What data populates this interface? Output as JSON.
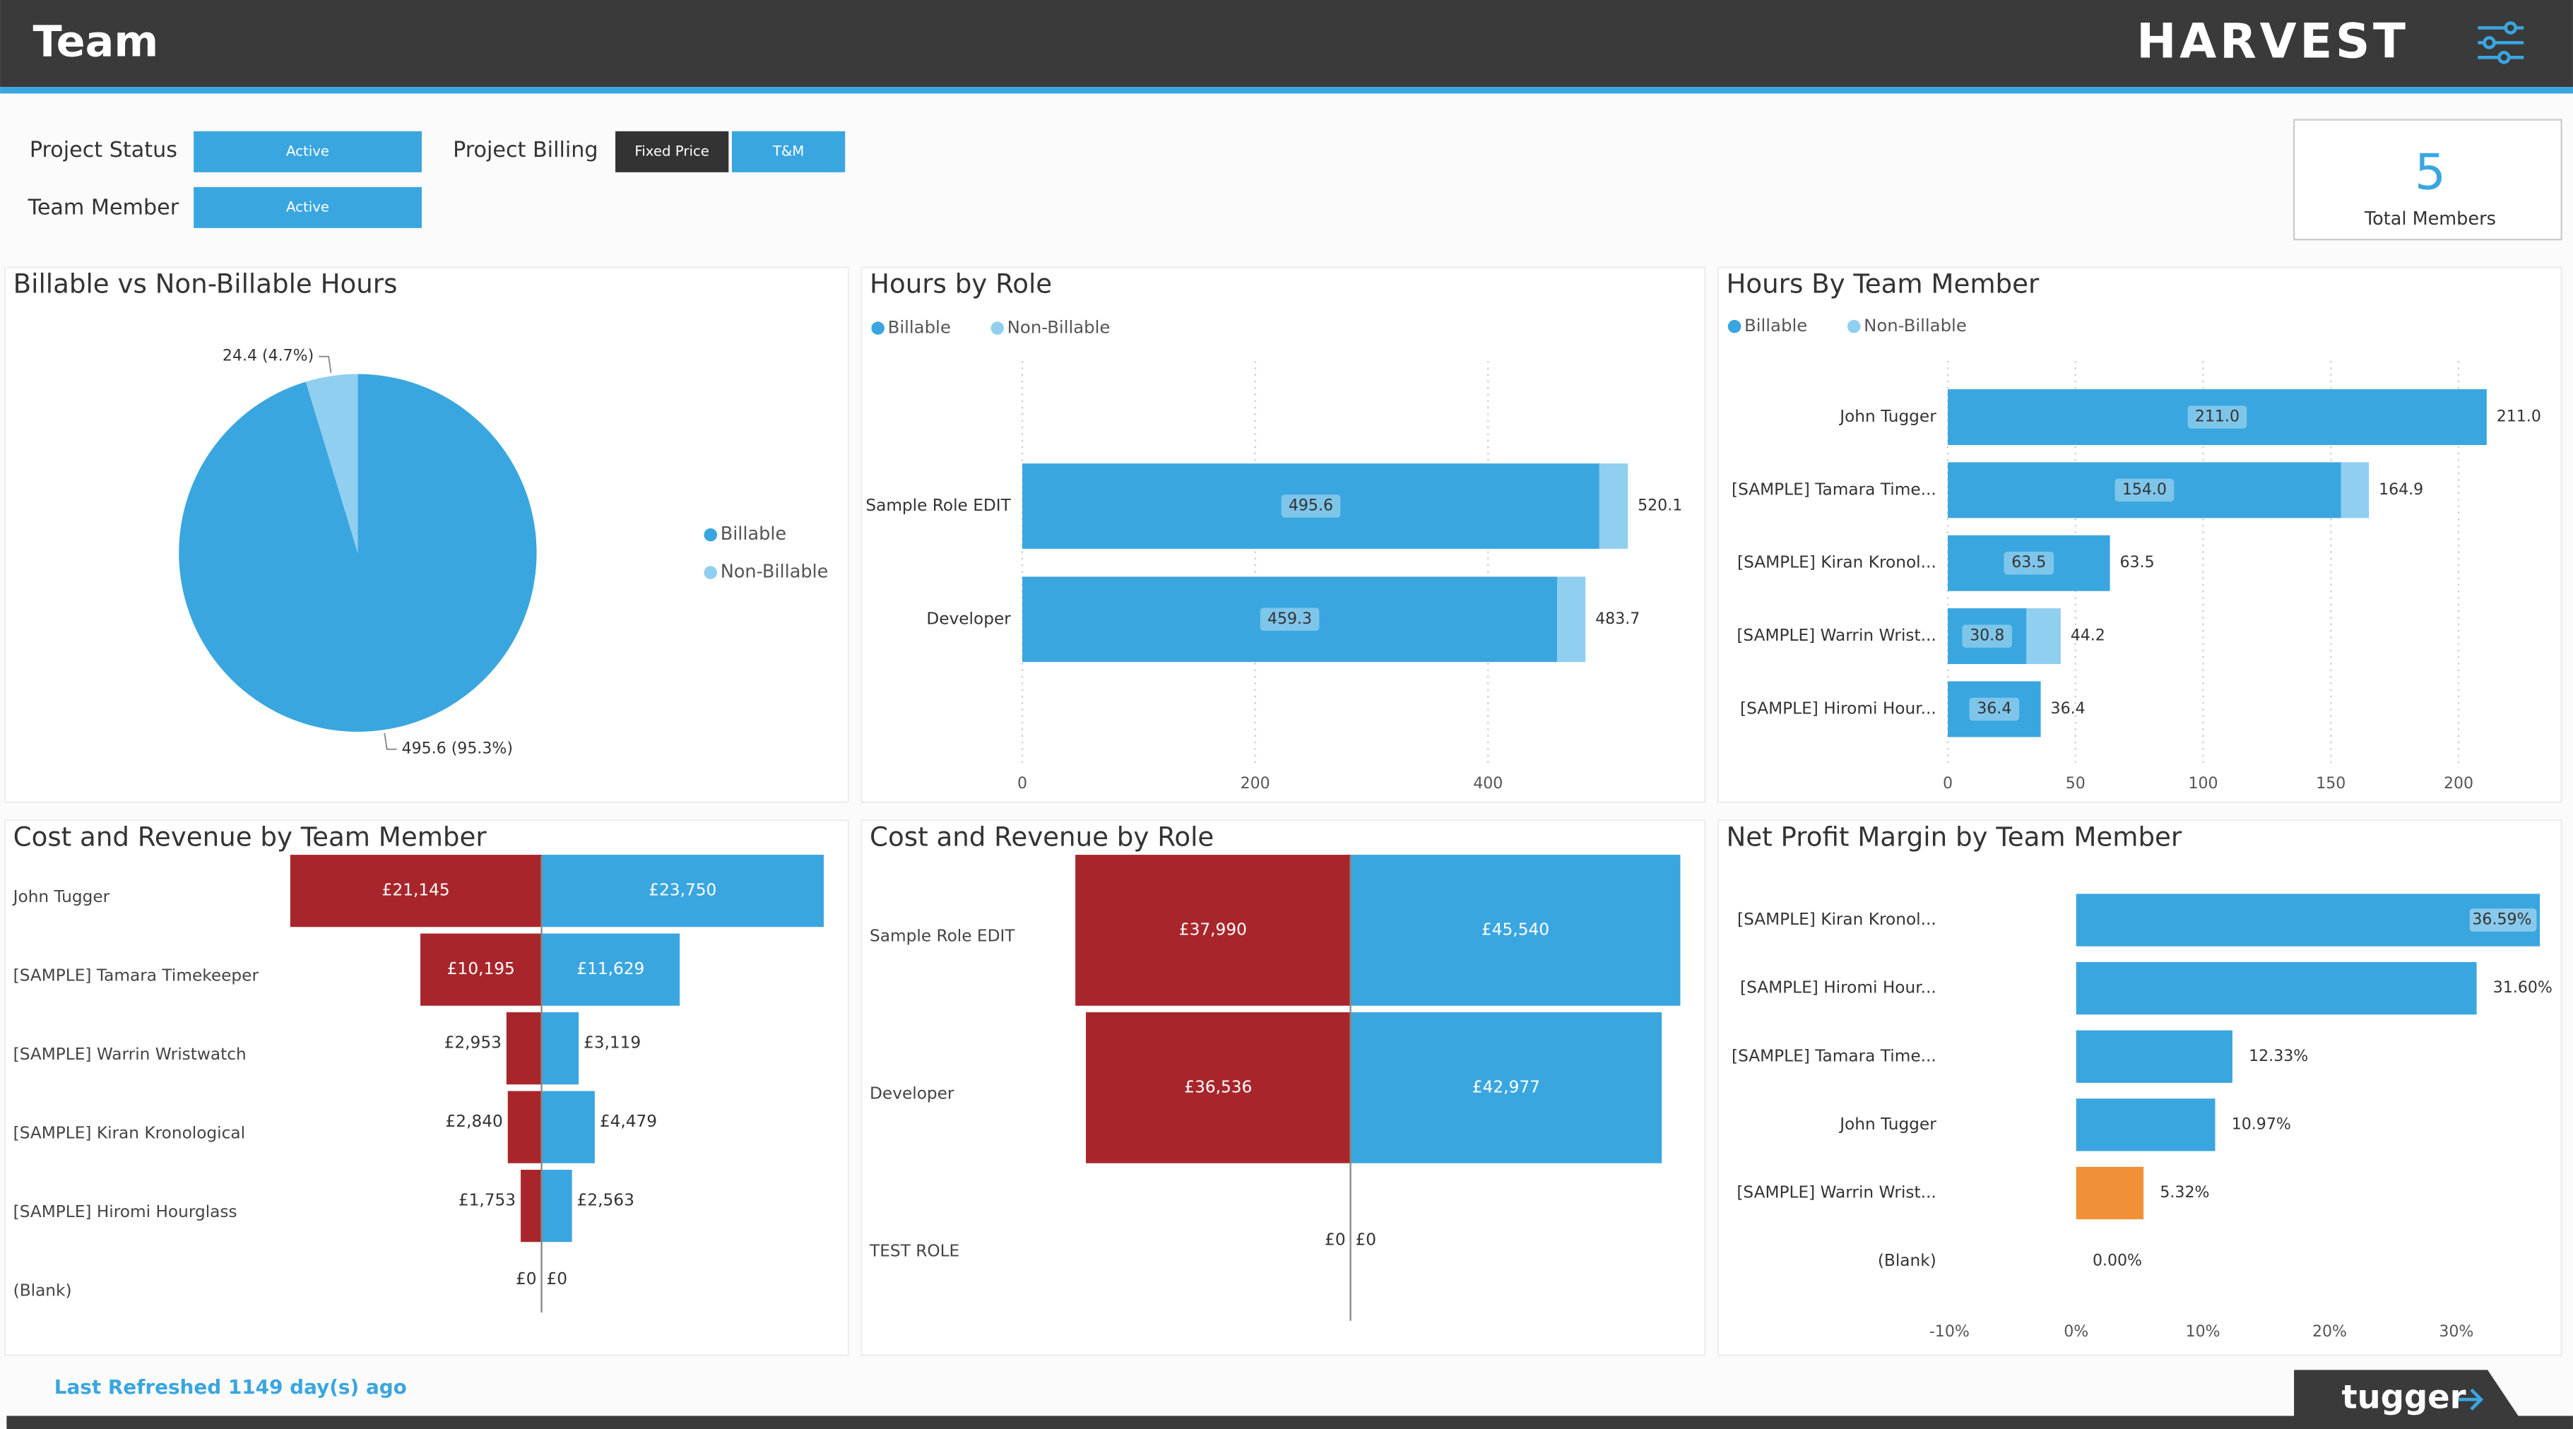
{
  "header": {
    "title": "Team",
    "brand": "HARVEST"
  },
  "filters": [
    {
      "label": "Project Status",
      "options": [
        "Active"
      ],
      "selected": [
        true
      ]
    },
    {
      "label": "Project Billing",
      "options": [
        "Fixed Price",
        "T&M"
      ],
      "selected": [
        false,
        true
      ]
    },
    {
      "label": "Team Member",
      "options": [
        "Active"
      ],
      "selected": [
        true
      ]
    }
  ],
  "kpi": {
    "value": 5,
    "label": "Total Members"
  },
  "footer": {
    "refreshed": "Last Refreshed 1149 day(s) ago",
    "logo": "tugger"
  },
  "chart_data": [
    {
      "type": "pie",
      "title": "Billable vs Non-Billable Hours",
      "categories": [
        "Billable",
        "Non-Billable"
      ],
      "values": [
        495.6,
        24.4
      ],
      "value_labels": [
        "495.6 (95.3%)",
        "24.4 (4.7%)"
      ],
      "colors": [
        "#3aa6df",
        "#90cff0"
      ],
      "legend": "right"
    },
    {
      "type": "stacked-hbar",
      "title": "Hours by Role",
      "categories": [
        "Sample Role EDIT",
        "Developer"
      ],
      "series": [
        {
          "name": "Billable",
          "color": "#3aa6df",
          "values": [
            495.6,
            459.3
          ],
          "show_labels": true
        },
        {
          "name": "Non-Billable",
          "color": "#90cff0",
          "values": [
            24.5,
            24.4
          ]
        }
      ],
      "totals": [
        520.1,
        483.7
      ],
      "xlim": [
        0,
        575
      ],
      "xticks": [
        0,
        200,
        400
      ],
      "grid": true,
      "legend": "top-left"
    },
    {
      "type": "stacked-hbar",
      "title": "Hours By Team Member",
      "categories": [
        "John Tugger",
        "[SAMPLE] Tamara Time...",
        "[SAMPLE] Kiran Kronol...",
        "[SAMPLE] Warrin Wrist...",
        "[SAMPLE] Hiromi Hour..."
      ],
      "series": [
        {
          "name": "Billable",
          "color": "#3aa6df",
          "values": [
            211.0,
            154.0,
            63.5,
            30.8,
            36.4
          ],
          "value_labels": [
            "211.0",
            "154.0",
            "63.5",
            "30.8",
            "36.4"
          ],
          "show_labels": true
        },
        {
          "name": "Non-Billable",
          "color": "#90cff0",
          "values": [
            0,
            10.9,
            0,
            13.4,
            0
          ]
        }
      ],
      "totals": [
        211.0,
        164.9,
        63.5,
        44.2,
        36.4
      ],
      "total_labels": [
        "211.0",
        "164.9",
        "63.5",
        "44.2",
        "36.4"
      ],
      "xlim": [
        0,
        230
      ],
      "xticks": [
        0,
        50,
        100,
        150,
        200
      ],
      "grid": true,
      "legend": "top-left"
    },
    {
      "type": "diverging-hbar",
      "title": "Cost and Revenue by Team Member",
      "categories": [
        "John Tugger",
        "[SAMPLE] Tamara Timekeeper",
        "[SAMPLE] Warrin Wristwatch",
        "[SAMPLE] Kiran Kronological",
        "[SAMPLE] Hiromi Hourglass",
        "(Blank)"
      ],
      "series": [
        {
          "color": "#a8262b",
          "values": [
            21145,
            10195,
            2953,
            2840,
            1753,
            0
          ],
          "value_labels": [
            "£21,145",
            "£10,195",
            "£2,953",
            "£2,840",
            "£1,753",
            "£0"
          ]
        },
        {
          "color": "#3aa6df",
          "values": [
            23750,
            11629,
            3119,
            4479,
            2563,
            0
          ],
          "value_labels": [
            "£23,750",
            "£11,629",
            "£3,119",
            "£4,479",
            "£2,563",
            "£0"
          ]
        }
      ]
    },
    {
      "type": "diverging-hbar",
      "title": "Cost and Revenue by Role",
      "categories": [
        "Sample Role EDIT",
        "Developer",
        "TEST ROLE"
      ],
      "series": [
        {
          "color": "#a8262b",
          "values": [
            37990,
            36536,
            0
          ],
          "value_labels": [
            "£37,990",
            "£36,536",
            "£0"
          ]
        },
        {
          "color": "#3aa6df",
          "values": [
            45540,
            42977,
            0
          ],
          "value_labels": [
            "£45,540",
            "£42,977",
            "£0"
          ]
        }
      ]
    },
    {
      "type": "hbar",
      "title": "Net Profit Margin by Team Member",
      "categories": [
        "[SAMPLE] Kiran Kronol...",
        "[SAMPLE] Hiromi Hour...",
        "[SAMPLE] Tamara Time...",
        "John Tugger",
        "[SAMPLE] Warrin Wrist...",
        "(Blank)"
      ],
      "values": [
        36.59,
        31.6,
        12.33,
        10.97,
        5.32,
        0.0
      ],
      "value_labels": [
        "36.59%",
        "31.60%",
        "12.33%",
        "10.97%",
        "5.32%",
        "0.00%"
      ],
      "colors": [
        "#3aa6df",
        "#3aa6df",
        "#3aa6df",
        "#3aa6df",
        "#f0913a",
        "#3aa6df"
      ],
      "xlim": [
        -10,
        37
      ],
      "xticks": [
        {
          "value": -10,
          "label": "-10%"
        },
        {
          "value": 0,
          "label": "0%"
        },
        {
          "value": 10,
          "label": "10%"
        },
        {
          "value": 20,
          "label": "20%"
        },
        {
          "value": 30,
          "label": "30%"
        }
      ],
      "grid": false
    }
  ]
}
